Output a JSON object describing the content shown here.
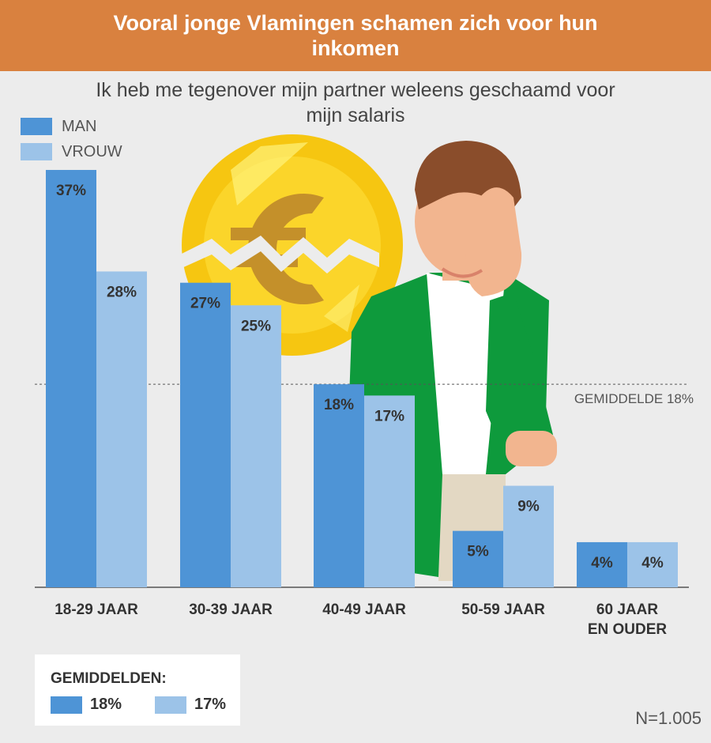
{
  "title": "Vooral jonge Vlamingen schamen zich voor hun inkomen",
  "subtitle": "Ik heb me tegenover mijn partner weleens geschaamd voor mijn salaris",
  "colors": {
    "man": "#4e94d6",
    "vrouw": "#9cc3e8",
    "header": "#d9813f",
    "background": "#ececec"
  },
  "chart_data": {
    "type": "bar",
    "title": "Vooral jonge Vlamingen schamen zich voor hun inkomen",
    "subtitle": "Ik heb me tegenover mijn partner weleens geschaamd voor mijn salaris",
    "categories": [
      [
        "18-29 JAAR"
      ],
      [
        "30-39 JAAR"
      ],
      [
        "40-49 JAAR"
      ],
      [
        "50-59 JAAR"
      ],
      [
        "60 JAAR",
        "EN OUDER"
      ]
    ],
    "series": [
      {
        "name": "MAN",
        "values": [
          37,
          27,
          18,
          5,
          4
        ],
        "labels": [
          "37%",
          "27%",
          "18%",
          "5%",
          "4%"
        ]
      },
      {
        "name": "VROUW",
        "values": [
          28,
          25,
          17,
          9,
          4
        ],
        "labels": [
          "28%",
          "25%",
          "17%",
          "9%",
          "4%"
        ]
      }
    ],
    "ylim": [
      0,
      40
    ],
    "reference_line": {
      "value": 18,
      "label": "GEMIDDELDE 18%"
    },
    "legend": "top-left",
    "grid": false
  },
  "averages": {
    "title": "GEMIDDELDEN:",
    "items": [
      {
        "series": "MAN",
        "value": "18%"
      },
      {
        "series": "VROUW",
        "value": "17%"
      }
    ]
  },
  "footnote": "N=1.005",
  "illustration": {
    "icons": [
      "broken-euro-coin-icon",
      "ashamed-man-icon"
    ]
  }
}
